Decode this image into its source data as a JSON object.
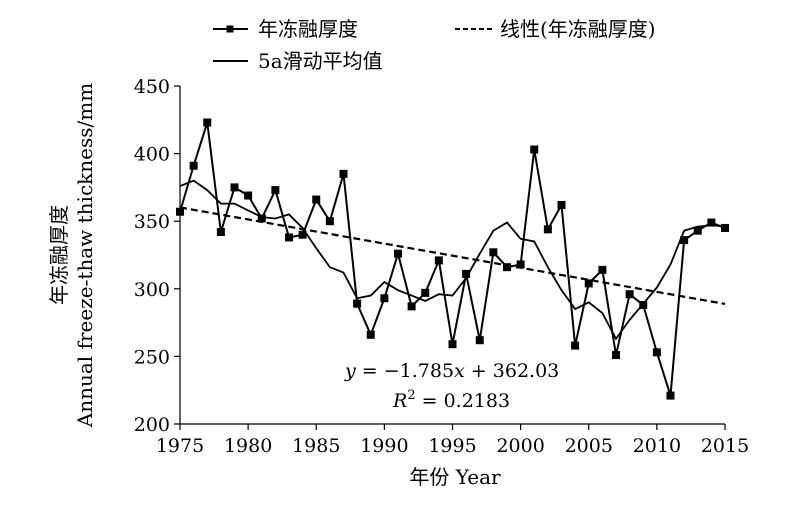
{
  "chart_data": {
    "type": "line",
    "xlabel": "年份 Year",
    "ylabel": "年冻融厚度 Annual freeze-thaw thickness/mm",
    "ylabel_zh": "年冻融厚度",
    "ylabel_en": "Annual freeze-thaw thickness/mm",
    "xlim": [
      1975,
      2015
    ],
    "ylim": [
      200,
      450
    ],
    "xticks": [
      "1975",
      "1980",
      "1985",
      "1990",
      "1995",
      "2000",
      "2005",
      "2010",
      "2015"
    ],
    "yticks": [
      "200",
      "250",
      "300",
      "350",
      "400",
      "450"
    ],
    "grid": false,
    "legend_position": "top",
    "x": [
      1975,
      1976,
      1977,
      1978,
      1979,
      1980,
      1981,
      1982,
      1983,
      1984,
      1985,
      1986,
      1987,
      1988,
      1989,
      1990,
      1991,
      1992,
      1993,
      1994,
      1995,
      1996,
      1997,
      1998,
      1999,
      2000,
      2001,
      2002,
      2003,
      2004,
      2005,
      2006,
      2007,
      2008,
      2009,
      2010,
      2011,
      2012,
      2013,
      2014,
      2015
    ],
    "series": [
      {
        "name": "年冻融厚度",
        "style": "line-square-markers",
        "values": [
          357,
          391,
          423,
          342,
          375,
          369,
          352,
          373,
          338,
          340,
          366,
          350,
          385,
          289,
          266,
          293,
          326,
          287,
          297,
          321,
          259,
          311,
          262,
          327,
          316,
          318,
          403,
          344,
          362,
          258,
          304,
          314,
          251,
          296,
          288,
          253,
          221,
          336,
          343,
          349,
          345
        ]
      },
      {
        "name": "线性(年冻融厚度)",
        "style": "dashed",
        "x": [
          1975,
          2015
        ],
        "values": [
          360.2,
          288.8
        ]
      },
      {
        "name": "5a滑动平均值",
        "style": "solid",
        "x": [
          1975,
          1976,
          1977,
          1978,
          1979,
          1980,
          1981,
          1982,
          1983,
          1984,
          1985,
          1986,
          1987,
          1988,
          1989,
          1990,
          1991,
          1992,
          1993,
          1994,
          1995,
          1996,
          1997,
          1998,
          1999,
          2000,
          2001,
          2002,
          2003,
          2004,
          2005,
          2006,
          2007,
          2008,
          2009,
          2010,
          2011,
          2012,
          2013,
          2014,
          2015
        ],
        "values": [
          376,
          380,
          373,
          363,
          363,
          358,
          353,
          352,
          355,
          345,
          330,
          316,
          312,
          293,
          295,
          305,
          299,
          295,
          291,
          296,
          295,
          308,
          326,
          343,
          349,
          337,
          335,
          316,
          299,
          285,
          290,
          282,
          263,
          277,
          289,
          301,
          318,
          343,
          346,
          347,
          346
        ]
      }
    ],
    "annotations": [
      {
        "text_pre": "y",
        "text_eq": " = −1.785",
        "text_var": "x",
        "text_post": " + 362.03"
      },
      {
        "text_pre": "R",
        "text_sup": "2",
        "text_post": " = 0.2183"
      }
    ]
  }
}
